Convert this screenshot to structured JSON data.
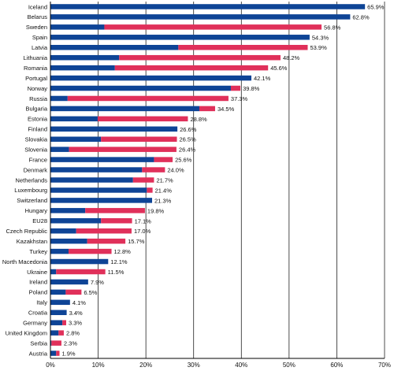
{
  "chart_data": {
    "type": "bar",
    "orientation": "horizontal",
    "stacked": true,
    "categories": [
      "Iceland",
      "Belarus",
      "Sweden",
      "Spain",
      "Latvia",
      "Lithuania",
      "Romania",
      "Portugal",
      "Norway",
      "Russia",
      "Bulgaria",
      "Estonia",
      "Finland",
      "Slovakia",
      "Slovenia",
      "France",
      "Denmark",
      "Netherlands",
      "Luxembourg",
      "Switzerland",
      "Hungary",
      "EU28",
      "Czech Republic",
      "Kazakhstan",
      "Turkey",
      "North Macedonia",
      "Ukraine",
      "Ireland",
      "Poland",
      "Italy",
      "Croatia",
      "Germany",
      "United Kingdom",
      "Serbia",
      "Austria"
    ],
    "series": [
      {
        "color": "#0e4496",
        "values": [
          65.9,
          62.8,
          11.3,
          54.3,
          26.8,
          14.4,
          13.5,
          42.1,
          37.8,
          3.6,
          31.2,
          9.9,
          26.6,
          10.6,
          3.9,
          21.7,
          19.2,
          17.3,
          20.2,
          21.3,
          7.3,
          10.6,
          5.4,
          7.7,
          3.8,
          12.1,
          1.2,
          7.9,
          3.2,
          4.1,
          3.4,
          2.5,
          1.7,
          0.2,
          1.2
        ]
      },
      {
        "color": "#e0305a",
        "values": [
          0,
          0,
          45.5,
          0,
          27.1,
          33.8,
          32.1,
          0,
          2.0,
          33.7,
          3.3,
          18.9,
          0,
          15.9,
          22.5,
          3.9,
          4.8,
          4.4,
          1.2,
          0,
          12.5,
          6.5,
          11.6,
          8.0,
          9.0,
          0,
          10.3,
          0,
          3.3,
          0,
          0,
          0.8,
          1.1,
          2.1,
          0.7
        ]
      }
    ],
    "data_labels": [
      "65.9%",
      "62.8%",
      "56.8%",
      "54.3%",
      "53.9%",
      "48.2%",
      "45.6%",
      "42.1%",
      "39.8%",
      "37.3%",
      "34.5%",
      "28.8%",
      "26.6%",
      "26.5%",
      "26.4%",
      "25.6%",
      "24.0%",
      "21.7%",
      "21.4%",
      "21.3%",
      "19.8%",
      "17.1%",
      "17.0%",
      "15.7%",
      "12.8%",
      "12.1%",
      "11.5%",
      "7.9%",
      "6.5%",
      "4.1%",
      "3.4%",
      "3.3%",
      "2.8%",
      "2.3%",
      "1.9%"
    ],
    "xlim": [
      0,
      70
    ],
    "x_ticks": [
      "0%",
      "10%",
      "20%",
      "30%",
      "40%",
      "50%",
      "60%",
      "70%"
    ],
    "grid": true,
    "legend": "none",
    "title": "",
    "xlabel": "",
    "ylabel": ""
  },
  "colors": {
    "axis": "#000000",
    "grid": "#222222",
    "background": "#ffffff"
  }
}
